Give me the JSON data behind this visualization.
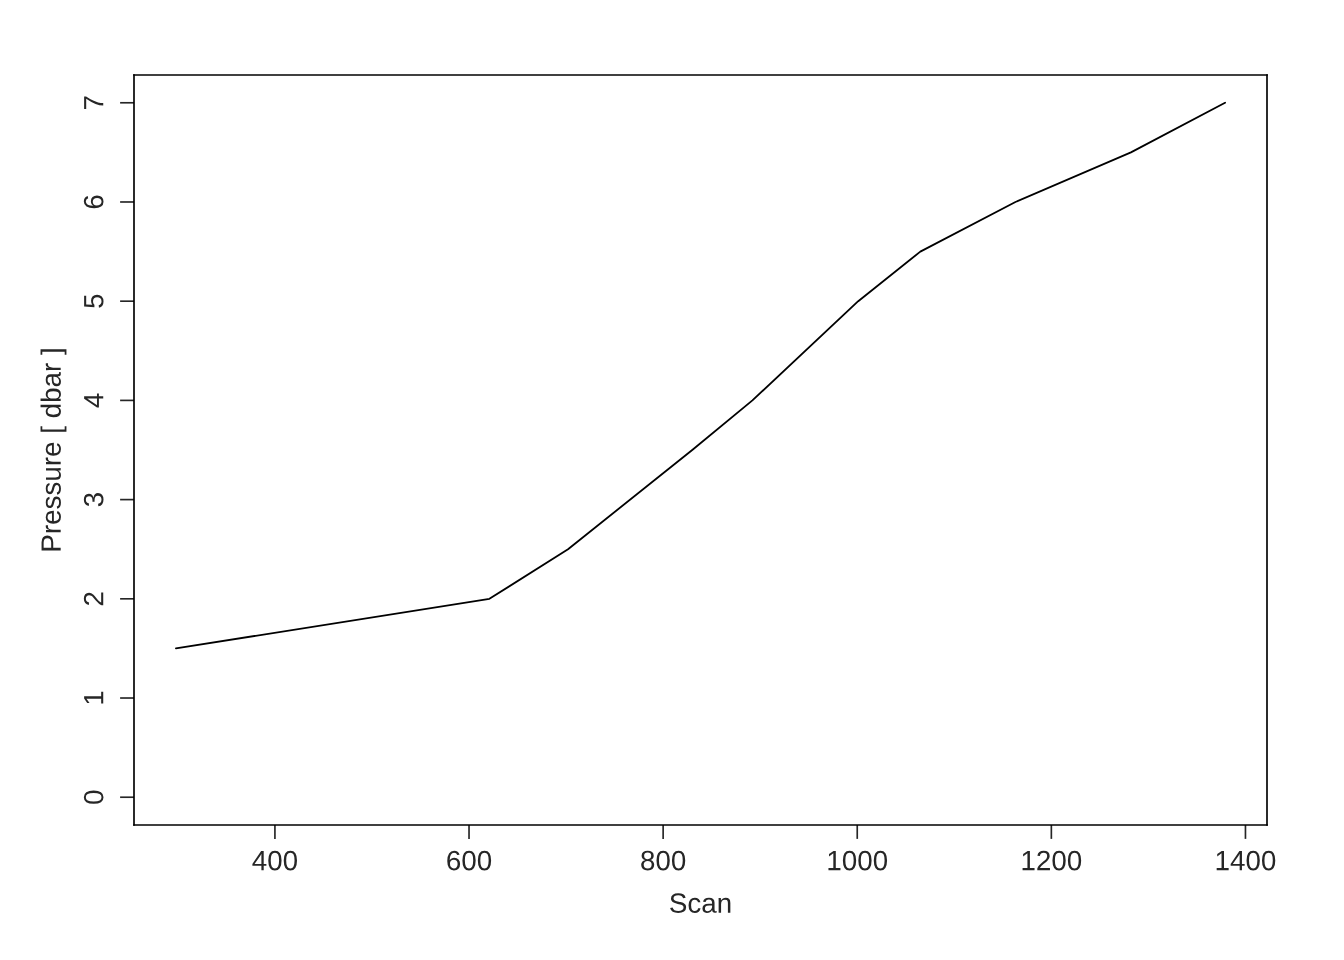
{
  "chart_data": {
    "type": "line",
    "xlabel": "Scan",
    "ylabel": "Pressure [ dbar ]",
    "x": [
      298,
      621,
      702,
      830,
      892,
      1001,
      1065,
      1163,
      1282,
      1379
    ],
    "series": [
      {
        "color": "#000000",
        "values": [
          1.5,
          2.0,
          2.5,
          3.5,
          4.0,
          5.0,
          5.5,
          6.0,
          6.5,
          7.0
        ]
      }
    ],
    "xlim": [
      254.8,
      1422.2
    ],
    "ylim": [
      -0.28,
      7.28
    ],
    "xticks": [
      400,
      600,
      800,
      1000,
      1200,
      1400
    ],
    "yticks": [
      0,
      1,
      2,
      3,
      4,
      5,
      6,
      7
    ],
    "marker": "none",
    "line_style": "solid"
  }
}
